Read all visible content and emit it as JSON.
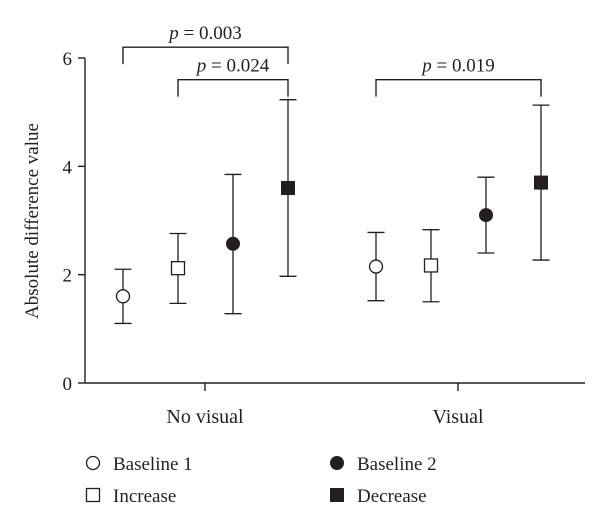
{
  "chart_data": {
    "type": "scatter",
    "title": "",
    "ylabel": "Absolute difference value",
    "xlabel": "",
    "ylim": [
      0,
      6
    ],
    "yticks": [
      0,
      2,
      4,
      6
    ],
    "groups": [
      "No visual",
      "Visual"
    ],
    "series": [
      {
        "name": "Baseline 1",
        "marker": "open-circle",
        "values": [
          1.6,
          2.15
        ],
        "lower": [
          1.1,
          1.52
        ],
        "upper": [
          2.1,
          2.78
        ]
      },
      {
        "name": "Increase",
        "marker": "open-square",
        "values": [
          2.12,
          2.17
        ],
        "lower": [
          1.47,
          1.5
        ],
        "upper": [
          2.76,
          2.83
        ]
      },
      {
        "name": "Baseline 2",
        "marker": "filled-circle",
        "values": [
          2.57,
          3.1
        ],
        "lower": [
          1.28,
          2.4
        ],
        "upper": [
          3.85,
          3.8
        ]
      },
      {
        "name": "Decrease",
        "marker": "filled-square",
        "values": [
          3.6,
          3.7
        ],
        "lower": [
          1.97,
          2.27
        ],
        "upper": [
          5.23,
          5.13
        ]
      }
    ],
    "annotations": [
      {
        "text": "p = 0.003",
        "group": "No visual",
        "from_series": "Baseline 1",
        "to_series": "Decrease",
        "y": 6.2
      },
      {
        "text": "p = 0.024",
        "group": "No visual",
        "from_series": "Increase",
        "to_series": "Decrease",
        "y": 5.6
      },
      {
        "text": "p = 0.019",
        "group": "Visual",
        "from_series": "Baseline 1",
        "to_series": "Decrease",
        "y": 5.6
      }
    ],
    "legend": {
      "placement": "bottom",
      "items": [
        "Baseline 1",
        "Baseline 2",
        "Increase",
        "Decrease"
      ]
    },
    "grid": false
  }
}
